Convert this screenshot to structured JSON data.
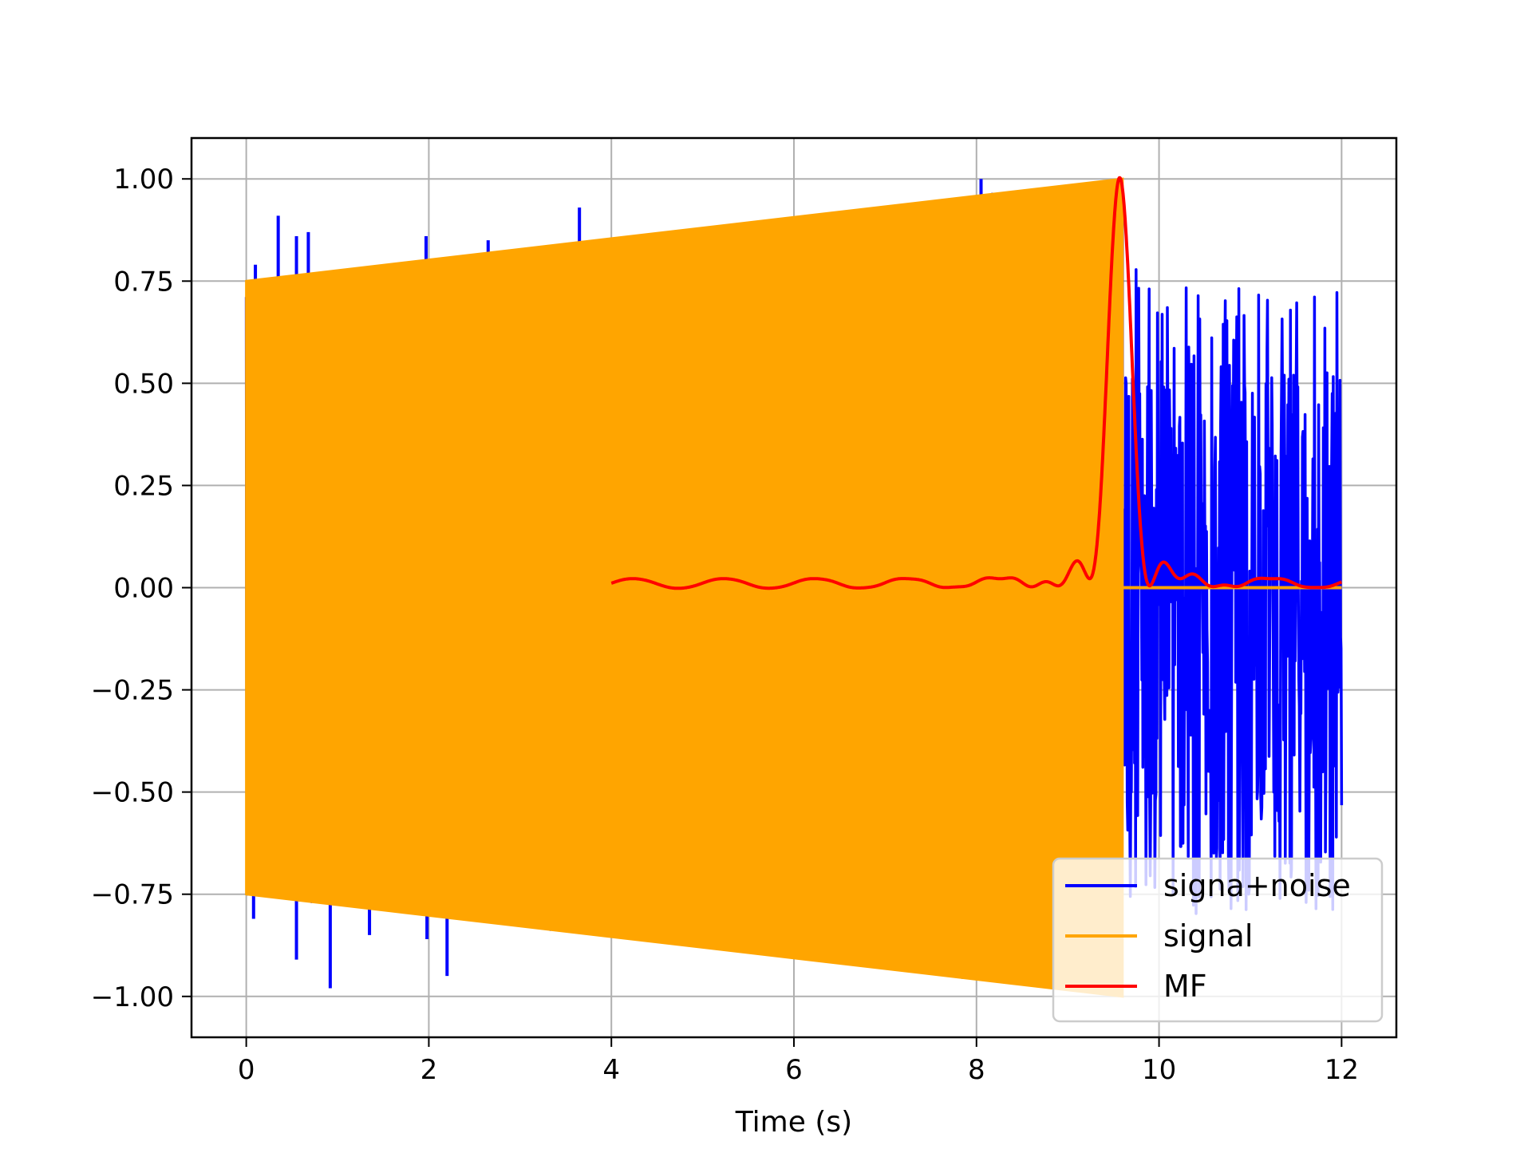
{
  "chart_data": {
    "type": "line",
    "title": "",
    "xlabel": "Time (s)",
    "ylabel": "",
    "xlim": [
      -0.6,
      12.6
    ],
    "ylim": [
      -1.1,
      1.1
    ],
    "xticks": [
      0,
      2,
      4,
      6,
      8,
      10,
      12
    ],
    "xtick_labels": [
      "0",
      "2",
      "4",
      "6",
      "8",
      "10",
      "12"
    ],
    "yticks": [
      1.0,
      0.75,
      0.5,
      0.25,
      0.0,
      -0.25,
      -0.5,
      -0.75,
      -1.0
    ],
    "ytick_labels": [
      "1.00",
      "0.75",
      "0.50",
      "0.25",
      "0.00",
      "−0.25",
      "−0.50",
      "−0.75",
      "−1.00"
    ],
    "grid": true,
    "legend_position": "lower right",
    "series": [
      {
        "name": "signa+noise",
        "color": "#0000ff",
        "description_values": {
          "x_range": [
            0,
            12
          ],
          "noise_segment_x_range": [
            9.6,
            12
          ],
          "noise_amplitude_range": [
            -0.8,
            0.8
          ],
          "spikes": [
            {
              "x": 0.1,
              "y": 0.79
            },
            {
              "x": 0.35,
              "y": 0.91
            },
            {
              "x": 0.55,
              "y": 0.86
            },
            {
              "x": 0.68,
              "y": 0.87
            },
            {
              "x": 1.97,
              "y": 0.86
            },
            {
              "x": 2.65,
              "y": 0.85
            },
            {
              "x": 3.65,
              "y": 0.93
            },
            {
              "x": 4.2,
              "y": 0.85
            },
            {
              "x": 4.38,
              "y": 0.85
            },
            {
              "x": 8.05,
              "y": 1.0
            },
            {
              "x": 8.95,
              "y": 0.98
            },
            {
              "x": 0.08,
              "y": -0.81
            },
            {
              "x": 0.55,
              "y": -0.91
            },
            {
              "x": 0.92,
              "y": -0.98
            },
            {
              "x": 1.35,
              "y": -0.85
            },
            {
              "x": 1.98,
              "y": -0.86
            },
            {
              "x": 2.2,
              "y": -0.95
            },
            {
              "x": 2.73,
              "y": -0.82
            },
            {
              "x": 3.45,
              "y": -0.82
            }
          ]
        }
      },
      {
        "name": "signal",
        "color": "#ffa500",
        "description_values": {
          "x_range": [
            0,
            9.6
          ],
          "envelope_start": 0.75,
          "envelope_end": 1.0,
          "after_end_value": 0.0,
          "after_end_x_range": [
            9.6,
            12
          ]
        }
      },
      {
        "name": "MF",
        "color": "#ff0000",
        "description_values": {
          "x_range": [
            4,
            12
          ],
          "peak": {
            "x": 9.57,
            "y": 1.0
          },
          "baseline": 0.0
        }
      }
    ]
  }
}
